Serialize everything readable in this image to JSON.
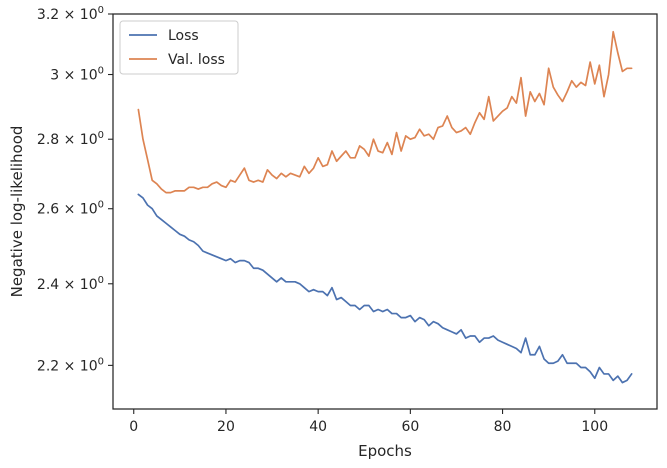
{
  "chart_data": {
    "type": "line",
    "title": "",
    "xlabel": "Epochs",
    "ylabel": "Negative log-likelihood",
    "yscale": "log",
    "xlim": [
      -4.5,
      113.5
    ],
    "ylim": [
      2.1,
      3.2
    ],
    "grid": false,
    "legend_position": "top-left",
    "x_ticks": [
      {
        "value": 0,
        "label": "0"
      },
      {
        "value": 20,
        "label": "20"
      },
      {
        "value": 40,
        "label": "40"
      },
      {
        "value": 60,
        "label": "60"
      },
      {
        "value": 80,
        "label": "80"
      },
      {
        "value": 100,
        "label": "100"
      }
    ],
    "y_ticks": [
      {
        "value": 2.2,
        "mantissa": "2.2",
        "exponent": "0"
      },
      {
        "value": 2.4,
        "mantissa": "2.4",
        "exponent": "0"
      },
      {
        "value": 2.6,
        "mantissa": "2.6",
        "exponent": "0"
      },
      {
        "value": 2.8,
        "mantissa": "2.8",
        "exponent": "0"
      },
      {
        "value": 3.0,
        "mantissa": "3",
        "exponent": "0"
      },
      {
        "value": 3.2,
        "mantissa": "3.2",
        "exponent": "0"
      }
    ],
    "x": [
      1,
      2,
      3,
      4,
      5,
      6,
      7,
      8,
      9,
      10,
      11,
      12,
      13,
      14,
      15,
      16,
      17,
      18,
      19,
      20,
      21,
      22,
      23,
      24,
      25,
      26,
      27,
      28,
      29,
      30,
      31,
      32,
      33,
      34,
      35,
      36,
      37,
      38,
      39,
      40,
      41,
      42,
      43,
      44,
      45,
      46,
      47,
      48,
      49,
      50,
      51,
      52,
      53,
      54,
      55,
      56,
      57,
      58,
      59,
      60,
      61,
      62,
      63,
      64,
      65,
      66,
      67,
      68,
      69,
      70,
      71,
      72,
      73,
      74,
      75,
      76,
      77,
      78,
      79,
      80,
      81,
      82,
      83,
      84,
      85,
      86,
      87,
      88,
      89,
      90,
      91,
      92,
      93,
      94,
      95,
      96,
      97,
      98,
      99,
      100,
      101,
      102,
      103,
      104,
      105,
      106,
      107,
      108
    ],
    "series": [
      {
        "name": "Loss",
        "color": "#4c72b0",
        "values": [
          2.64,
          2.63,
          2.61,
          2.6,
          2.58,
          2.57,
          2.56,
          2.55,
          2.54,
          2.53,
          2.525,
          2.515,
          2.51,
          2.5,
          2.485,
          2.48,
          2.475,
          2.47,
          2.465,
          2.46,
          2.465,
          2.455,
          2.46,
          2.46,
          2.455,
          2.44,
          2.44,
          2.435,
          2.425,
          2.415,
          2.405,
          2.415,
          2.405,
          2.405,
          2.405,
          2.4,
          2.39,
          2.38,
          2.385,
          2.38,
          2.38,
          2.37,
          2.39,
          2.36,
          2.365,
          2.355,
          2.345,
          2.345,
          2.335,
          2.345,
          2.345,
          2.33,
          2.335,
          2.33,
          2.335,
          2.325,
          2.325,
          2.315,
          2.315,
          2.32,
          2.305,
          2.315,
          2.31,
          2.295,
          2.305,
          2.3,
          2.29,
          2.285,
          2.28,
          2.275,
          2.285,
          2.265,
          2.27,
          2.27,
          2.255,
          2.265,
          2.265,
          2.27,
          2.26,
          2.255,
          2.25,
          2.245,
          2.24,
          2.23,
          2.265,
          2.225,
          2.225,
          2.245,
          2.215,
          2.205,
          2.205,
          2.21,
          2.225,
          2.205,
          2.205,
          2.205,
          2.195,
          2.195,
          2.185,
          2.17,
          2.195,
          2.18,
          2.18,
          2.165,
          2.175,
          2.16,
          2.165,
          2.18
        ]
      },
      {
        "name": "Val. loss",
        "color": "#dd8452",
        "values": [
          2.89,
          2.8,
          2.74,
          2.68,
          2.67,
          2.655,
          2.645,
          2.645,
          2.65,
          2.65,
          2.65,
          2.66,
          2.66,
          2.655,
          2.66,
          2.66,
          2.67,
          2.675,
          2.665,
          2.66,
          2.68,
          2.675,
          2.695,
          2.715,
          2.68,
          2.675,
          2.68,
          2.675,
          2.71,
          2.695,
          2.685,
          2.7,
          2.69,
          2.7,
          2.695,
          2.69,
          2.72,
          2.7,
          2.715,
          2.745,
          2.72,
          2.725,
          2.765,
          2.735,
          2.75,
          2.765,
          2.745,
          2.745,
          2.78,
          2.77,
          2.75,
          2.8,
          2.765,
          2.76,
          2.79,
          2.755,
          2.82,
          2.765,
          2.81,
          2.8,
          2.805,
          2.83,
          2.81,
          2.815,
          2.8,
          2.835,
          2.84,
          2.87,
          2.835,
          2.82,
          2.825,
          2.835,
          2.815,
          2.85,
          2.88,
          2.86,
          2.93,
          2.855,
          2.87,
          2.885,
          2.895,
          2.93,
          2.91,
          2.99,
          2.87,
          2.945,
          2.915,
          2.94,
          2.905,
          3.02,
          2.96,
          2.935,
          2.915,
          2.945,
          2.98,
          2.96,
          2.975,
          2.965,
          3.04,
          2.97,
          3.03,
          2.93,
          3.0,
          3.14,
          3.07,
          3.01,
          3.02,
          3.02
        ]
      }
    ]
  }
}
